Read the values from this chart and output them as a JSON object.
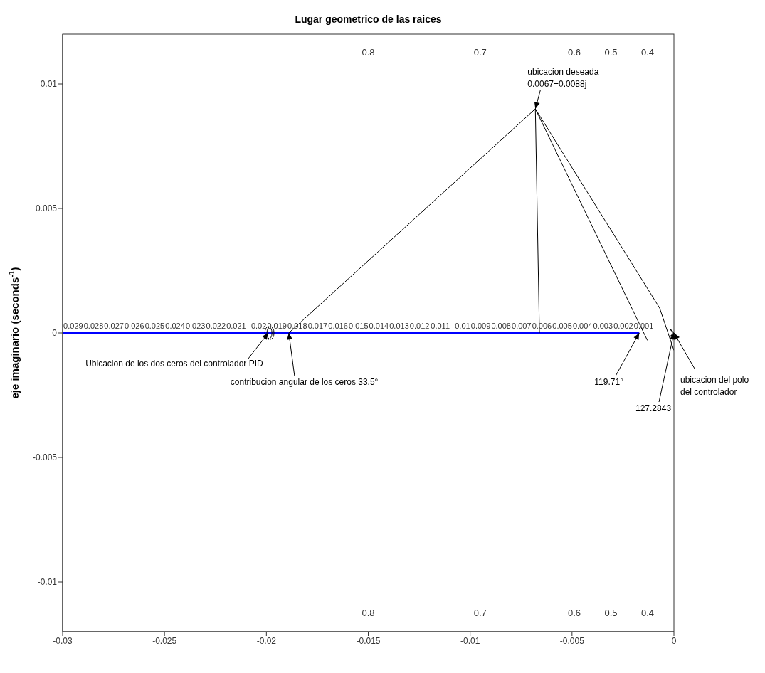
{
  "chart_data": {
    "type": "line",
    "title": "Lugar geometrico de las raices",
    "ylabel": "eje imaginario (seconds$^{-1}$)",
    "xlim": [
      -0.03,
      0
    ],
    "ylim": [
      -0.012,
      0.012
    ],
    "xticks": [
      -0.03,
      -0.025,
      -0.02,
      -0.015,
      -0.01,
      -0.005,
      0
    ],
    "yticks": [
      -0.01,
      -0.005,
      0,
      0.005,
      0.01
    ],
    "grid": false,
    "marker": "none",
    "line_style": "solid",
    "series": [
      {
        "color": "#0000ff",
        "x": [
          -0.03,
          -0.0017
        ],
        "values": [
          0,
          0
        ]
      },
      {
        "color": "#000000",
        "x": [
          -0.0189,
          -0.0068
        ],
        "values": [
          0,
          0.009
        ]
      },
      {
        "color": "#000000",
        "x": [
          -0.0068,
          -0.0066
        ],
        "values": [
          0.009,
          0
        ]
      },
      {
        "color": "#000000",
        "x": [
          -0.0068,
          -0.0013
        ],
        "values": [
          0.009,
          -0.0003
        ]
      },
      {
        "color": "#000000",
        "x": [
          -0.0068,
          -0.0007,
          0.0
        ],
        "values": [
          0.009,
          0.001,
          -0.0007
        ]
      },
      {
        "type": "scatter",
        "marker": "circle",
        "color": "#000000",
        "x": [
          -0.0199,
          -0.0198
        ],
        "values": [
          0,
          0
        ]
      },
      {
        "type": "scatter",
        "marker": "cross",
        "color": "#000000",
        "x": [
          0
        ],
        "values": [
          0
        ]
      }
    ],
    "annotations": [
      {
        "text": "ubicacion deseada\n0.0067+0.0088j",
        "x": -0.0068,
        "y": 0.009
      },
      {
        "text": "Ubicacion de los dos ceros del controlador PID",
        "x": -0.0199,
        "y": 0
      },
      {
        "text": "contribucion angular de los ceros  33.5°",
        "x": -0.0189,
        "y": 0
      },
      {
        "text": "119.71°",
        "x": -0.0017,
        "y": 0
      },
      {
        "text": "127.2843",
        "x": 0,
        "y": 0
      },
      {
        "text": "ubicacion del polo\ndel controlador",
        "x": 0,
        "y": 0
      },
      "0.029",
      "0.028",
      "0.027",
      "0.026",
      "0.025",
      "0.024",
      "0.023",
      "0.022",
      "0.021",
      "0.02",
      "0.019",
      "0.018",
      "0.017",
      "0.016",
      "0.015",
      "0.014",
      "0.013",
      "0.012",
      "0.011",
      "0.01",
      "0.009",
      "0.008",
      "0.007",
      "0.006",
      "0.005",
      "0.004",
      "0.003",
      "0.002",
      "0.001",
      "0.8",
      "0.7",
      "0.6",
      "0.5",
      "0.4",
      "0.8",
      "0.7",
      "0.6",
      "0.5",
      "0.4"
    ]
  }
}
